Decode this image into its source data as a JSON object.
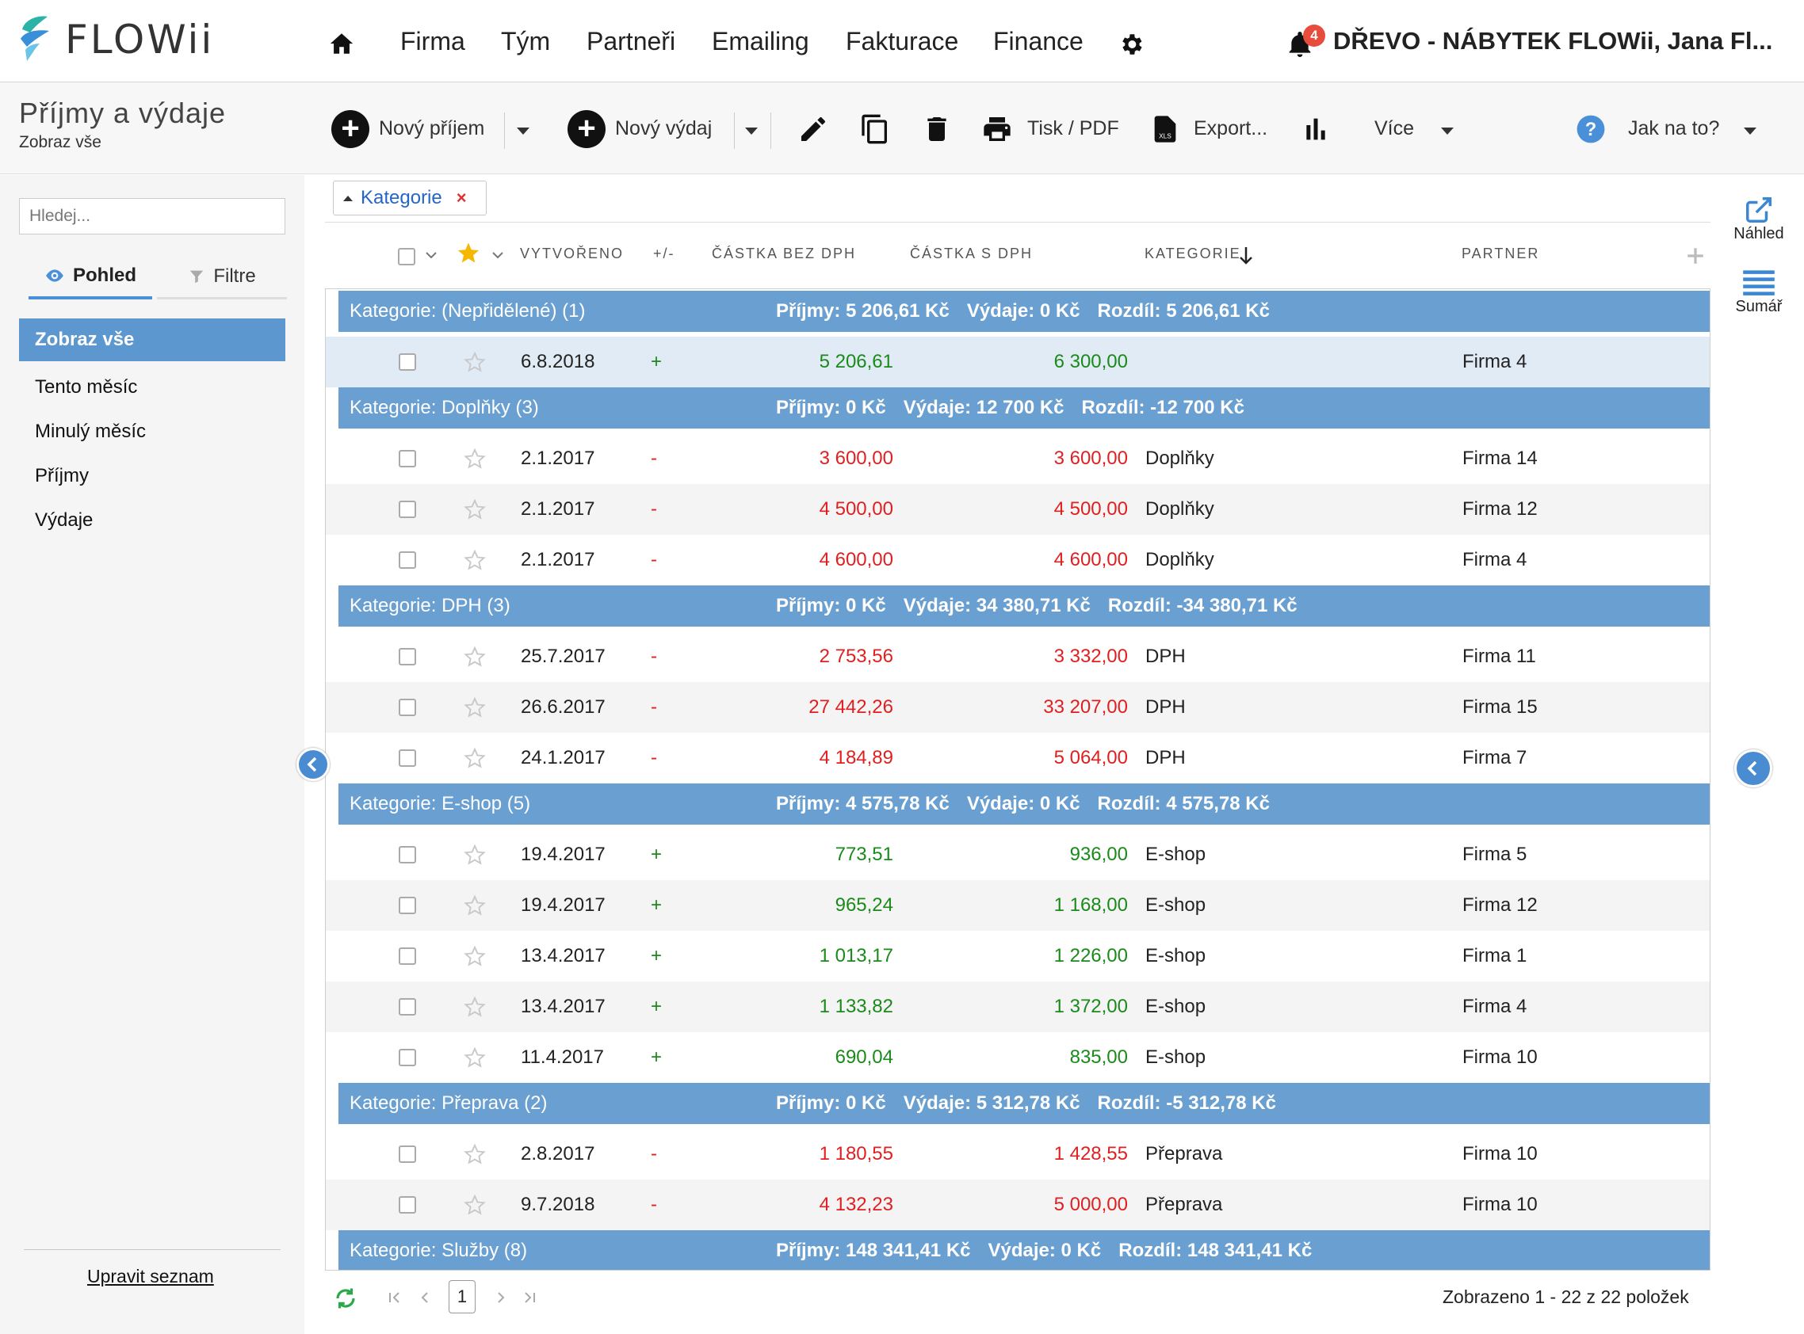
{
  "app": {
    "logo": "FLOWii",
    "company": "DŘEVO - NÁBYTEK FLOWii, Jana Fl...",
    "notifications": "4"
  },
  "nav": [
    "Firma",
    "Tým",
    "Partneři",
    "Emailing",
    "Fakturace",
    "Finance"
  ],
  "page": {
    "title": "Příjmy a výdaje",
    "subtitle": "Zobraz vše"
  },
  "toolbar": {
    "new_income": "Nový příjem",
    "new_expense": "Nový výdaj",
    "print": "Tisk / PDF",
    "export": "Export...",
    "more": "Více",
    "help": "Jak na to?",
    "xls": "XLS"
  },
  "sidebar": {
    "search_placeholder": "Hledej...",
    "tab_view": "Pohled",
    "tab_filter": "Filtre",
    "items": [
      "Zobraz vše",
      "Tento měsíc",
      "Minulý měsíc",
      "Příjmy",
      "Výdaje"
    ],
    "edit_list": "Upravit seznam"
  },
  "filter_chip": "Kategorie",
  "columns": {
    "created": "VYTVOŘENO",
    "sign": "+/-",
    "amount_net": "ČÁSTKA BEZ DPH",
    "amount_gross": "ČÁSTKA S DPH",
    "category": "KATEGORIE",
    "partner": "PARTNER"
  },
  "groups": [
    {
      "title": "Kategorie: (Nepřidělené) (1)",
      "income": "Příjmy: 5 206,61 Kč",
      "expense": "Výdaje: 0 Kč",
      "diff": "Rozdíl: 5 206,61 Kč",
      "rows": [
        {
          "date": "6.8.2018",
          "sign": "+",
          "net": "5 206,61",
          "gross": "6 300,00",
          "category": "",
          "partner": "Firma 4"
        }
      ]
    },
    {
      "title": "Kategorie: Doplňky (3)",
      "income": "Příjmy: 0 Kč",
      "expense": "Výdaje: 12 700 Kč",
      "diff": "Rozdíl: -12 700 Kč",
      "rows": [
        {
          "date": "2.1.2017",
          "sign": "-",
          "net": "3 600,00",
          "gross": "3 600,00",
          "category": "Doplňky",
          "partner": "Firma 14"
        },
        {
          "date": "2.1.2017",
          "sign": "-",
          "net": "4 500,00",
          "gross": "4 500,00",
          "category": "Doplňky",
          "partner": "Firma 12"
        },
        {
          "date": "2.1.2017",
          "sign": "-",
          "net": "4 600,00",
          "gross": "4 600,00",
          "category": "Doplňky",
          "partner": "Firma 4"
        }
      ]
    },
    {
      "title": "Kategorie: DPH (3)",
      "income": "Příjmy: 0 Kč",
      "expense": "Výdaje: 34 380,71 Kč",
      "diff": "Rozdíl: -34 380,71 Kč",
      "rows": [
        {
          "date": "25.7.2017",
          "sign": "-",
          "net": "2 753,56",
          "gross": "3 332,00",
          "category": "DPH",
          "partner": "Firma 11"
        },
        {
          "date": "26.6.2017",
          "sign": "-",
          "net": "27 442,26",
          "gross": "33 207,00",
          "category": "DPH",
          "partner": "Firma 15"
        },
        {
          "date": "24.1.2017",
          "sign": "-",
          "net": "4 184,89",
          "gross": "5 064,00",
          "category": "DPH",
          "partner": "Firma 7"
        }
      ]
    },
    {
      "title": "Kategorie: E-shop (5)",
      "income": "Příjmy: 4 575,78 Kč",
      "expense": "Výdaje: 0 Kč",
      "diff": "Rozdíl: 4 575,78 Kč",
      "rows": [
        {
          "date": "19.4.2017",
          "sign": "+",
          "net": "773,51",
          "gross": "936,00",
          "category": "E-shop",
          "partner": "Firma 5"
        },
        {
          "date": "19.4.2017",
          "sign": "+",
          "net": "965,24",
          "gross": "1 168,00",
          "category": "E-shop",
          "partner": "Firma 12"
        },
        {
          "date": "13.4.2017",
          "sign": "+",
          "net": "1 013,17",
          "gross": "1 226,00",
          "category": "E-shop",
          "partner": "Firma 1"
        },
        {
          "date": "13.4.2017",
          "sign": "+",
          "net": "1 133,82",
          "gross": "1 372,00",
          "category": "E-shop",
          "partner": "Firma 4"
        },
        {
          "date": "11.4.2017",
          "sign": "+",
          "net": "690,04",
          "gross": "835,00",
          "category": "E-shop",
          "partner": "Firma 10"
        }
      ]
    },
    {
      "title": "Kategorie: Přeprava (2)",
      "income": "Příjmy: 0 Kč",
      "expense": "Výdaje: 5 312,78 Kč",
      "diff": "Rozdíl: -5 312,78 Kč",
      "rows": [
        {
          "date": "2.8.2017",
          "sign": "-",
          "net": "1 180,55",
          "gross": "1 428,55",
          "category": "Přeprava",
          "partner": "Firma 10"
        },
        {
          "date": "9.7.2018",
          "sign": "-",
          "net": "4 132,23",
          "gross": "5 000,00",
          "category": "Přeprava",
          "partner": "Firma 10"
        }
      ]
    },
    {
      "title": "Kategorie: Služby (8)",
      "income": "Příjmy: 148 341,41 Kč",
      "expense": "Výdaje: 0 Kč",
      "diff": "Rozdíl: 148 341,41 Kč",
      "rows": []
    }
  ],
  "right_panel": {
    "preview": "Náhled",
    "summary": "Sumář"
  },
  "pager": {
    "page": "1",
    "info": "Zobrazeno 1 - 22 z 22 položek"
  },
  "colors": {
    "accent": "#6a9fd1",
    "sidebar_active": "#5c98cf",
    "positive": "#1a8a1a",
    "negative": "#e02020",
    "badge": "#e74c3c"
  }
}
